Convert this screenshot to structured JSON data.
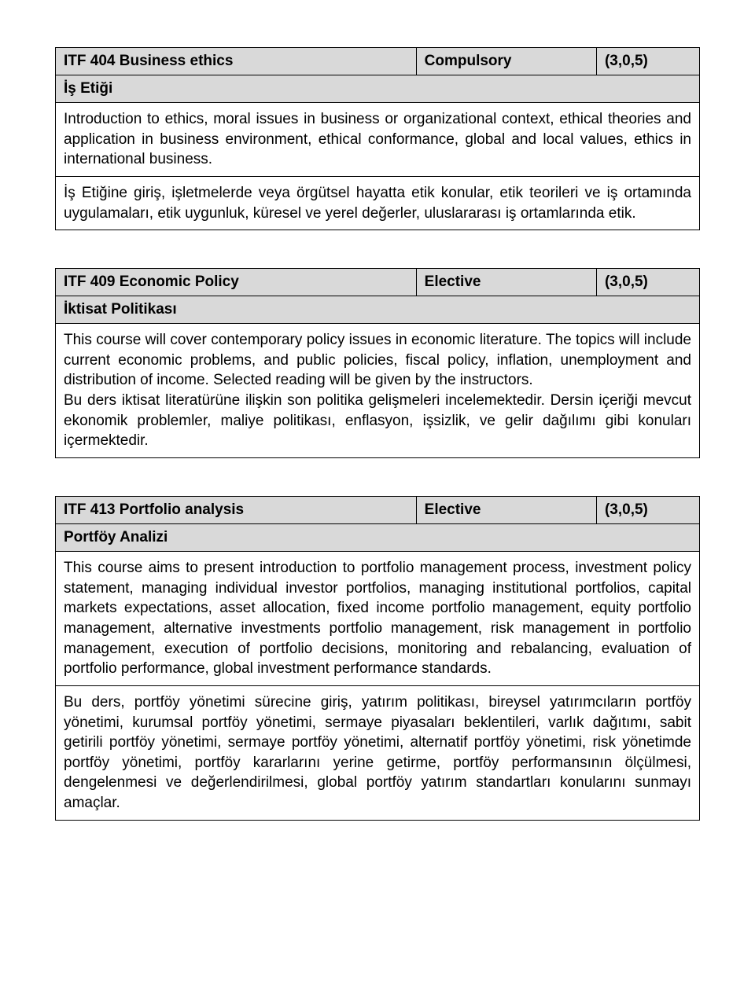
{
  "courses": [
    {
      "title": "ITF 404 Business ethics",
      "type": "Compulsory",
      "credits": "(3,0,5)",
      "subtitle": "İş Etiği",
      "descriptions": [
        "Introduction to ethics, moral issues in business or organizational context, ethical theories and application in business environment, ethical conformance, global and local values, ethics in international business.",
        "İş Etiğine giriş, işletmelerde veya örgütsel hayatta etik konular, etik teorileri ve iş ortamında uygulamaları, etik uygunluk, küresel ve yerel değerler, uluslararası iş ortamlarında etik."
      ]
    },
    {
      "title": "ITF 409 Economic Policy",
      "type": "Elective",
      "credits": "(3,0,5)",
      "subtitle": "İktisat Politikası",
      "descriptions": [
        "This course will cover contemporary policy issues in economic literature. The topics will include current economic problems, and public policies, fiscal policy, inflation, unemployment and distribution of income. Selected reading will be given by the instructors.\nBu ders iktisat literatürüne ilişkin son politika gelişmeleri incelemektedir. Dersin içeriği mevcut ekonomik problemler, maliye politikası, enflasyon, işsizlik, ve gelir dağılımı gibi konuları içermektedir."
      ]
    },
    {
      "title": "ITF 413 Portfolio analysis",
      "type": "Elective",
      "credits": "(3,0,5)",
      "subtitle": "Portföy Analizi",
      "descriptions": [
        "This course aims to present introduction to portfolio management process, investment policy statement, managing individual investor portfolios, managing institutional portfolios, capital markets expectations, asset allocation, fixed income portfolio management, equity portfolio management, alternative investments portfolio management, risk management in portfolio management, execution of portfolio decisions, monitoring and rebalancing, evaluation of portfolio performance, global investment performance standards.",
        "Bu ders, portföy yönetimi sürecine giriş, yatırım politikası, bireysel yatırımcıların portföy yönetimi, kurumsal portföy yönetimi, sermaye piyasaları beklentileri, varlık dağıtımı, sabit getirili portföy yönetimi, sermaye portföy yönetimi, alternatif portföy yönetimi, risk yönetimde portföy yönetimi, portföy kararlarını yerine getirme, portföy performansının ölçülmesi, dengelenmesi ve değerlendirilmesi, global portföy yatırım standartları konularını sunmayı amaçlar."
      ]
    }
  ]
}
